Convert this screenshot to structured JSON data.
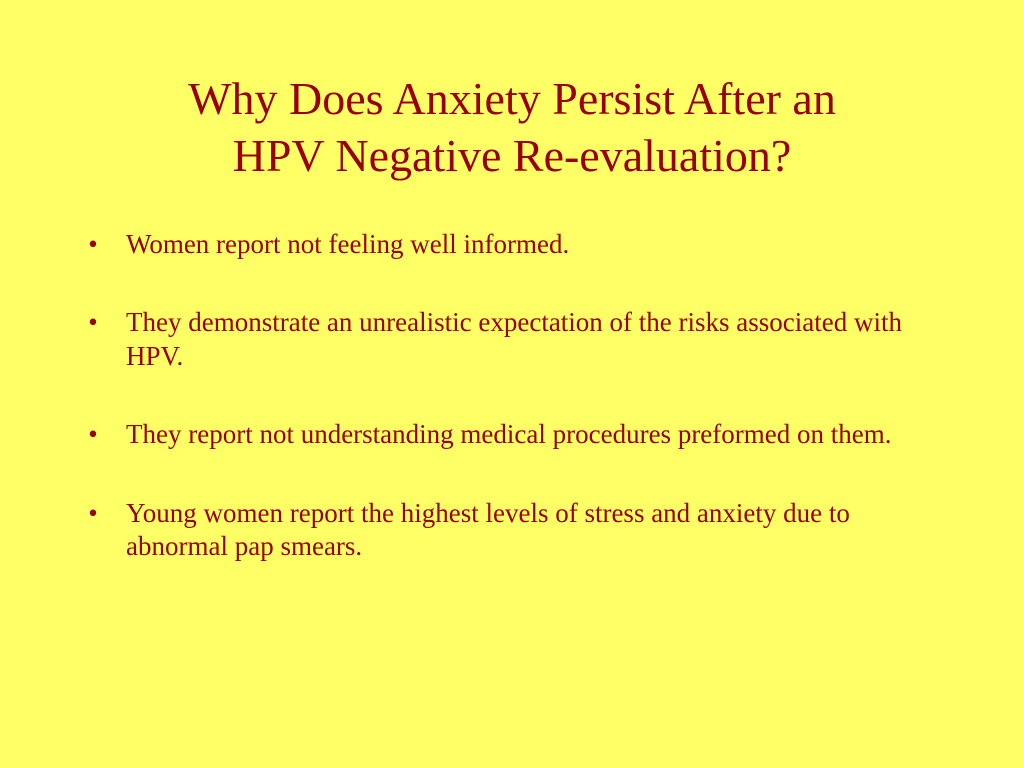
{
  "slide": {
    "title_lines": [
      "Why Does Anxiety Persist After an",
      "HPV Negative Re-evaluation?"
    ],
    "bullet_glyph": "•",
    "bullets": [
      "Women report not feeling well informed.",
      "They demonstrate an unrealistic expectation of the risks associated with HPV.",
      "They report not understanding medical procedures preformed on them.",
      "Young women report the highest levels of stress and anxiety due to abnormal pap smears."
    ]
  },
  "colors": {
    "background": "#ffff66",
    "text": "#990000"
  }
}
